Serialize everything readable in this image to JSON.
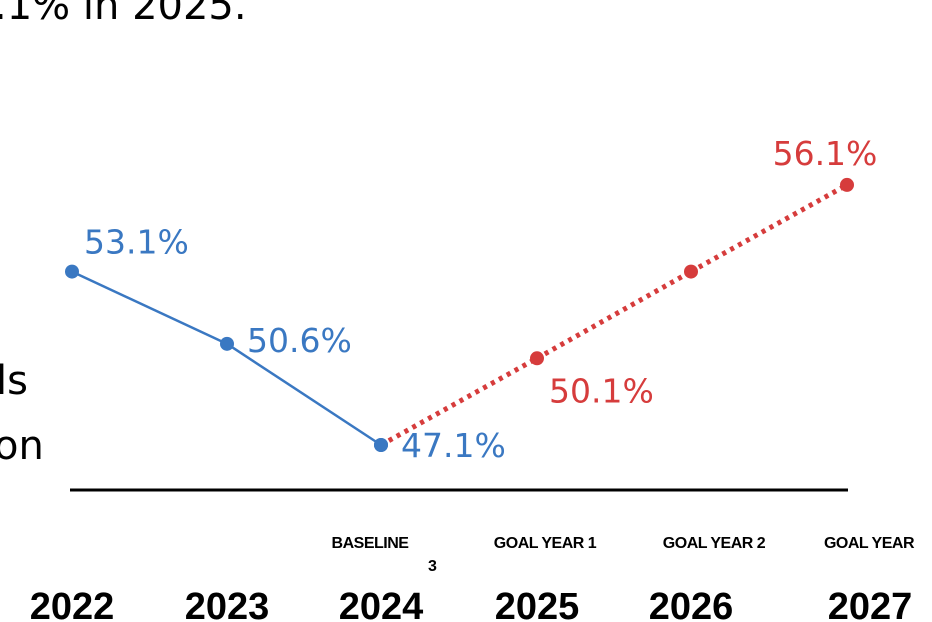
{
  "slide": {
    "title_fragment": ".1% in 2025.",
    "left_fragment_1": "ls",
    "left_fragment_2": "on",
    "footnote": "3"
  },
  "colors": {
    "actual": "#3a78c2",
    "goal": "#d63c3c",
    "axis": "#000000"
  },
  "chart_data": {
    "type": "line",
    "x": [
      "2022",
      "2023",
      "2024",
      "2025",
      "2026",
      "2027"
    ],
    "sublabels": [
      "",
      "",
      "BASELINE",
      "GOAL YEAR 1",
      "GOAL YEAR 2",
      "GOAL YEAR"
    ],
    "series": [
      {
        "values": [
          53.1,
          50.6,
          47.1,
          null,
          null,
          null
        ],
        "labels": [
          "53.1%",
          "50.6%",
          "47.1%",
          "",
          "",
          ""
        ],
        "style": "solid",
        "color": "#3a78c2"
      },
      {
        "values": [
          null,
          null,
          47.1,
          50.1,
          53.1,
          56.1
        ],
        "labels": [
          "",
          "",
          "",
          "50.1%",
          "",
          "56.1%"
        ],
        "style": "dotted",
        "color": "#d63c3c"
      }
    ],
    "grid": false
  }
}
